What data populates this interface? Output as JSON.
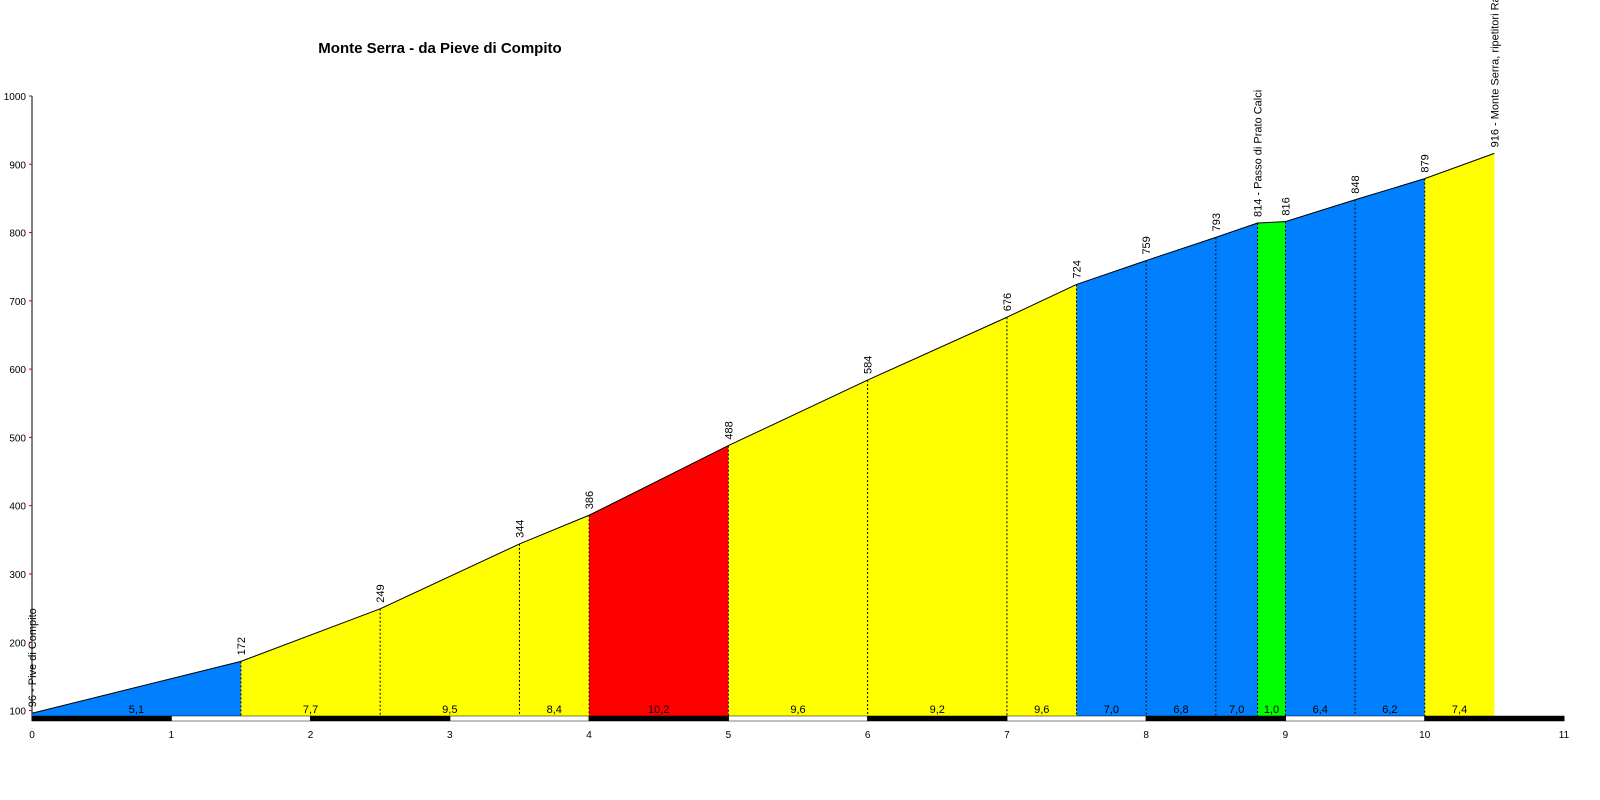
{
  "chart_data": {
    "type": "profile",
    "title": "Monte Serra - da Pieve di Compito",
    "x": [
      0,
      1.5,
      2.5,
      3.5,
      4.0,
      5.0,
      6.0,
      7.0,
      7.5,
      8.0,
      8.5,
      8.8,
      9.0,
      9.5,
      10.0,
      10.5
    ],
    "values": [
      96,
      172,
      249,
      344,
      386,
      488,
      584,
      676,
      724,
      759,
      793,
      814,
      816,
      848,
      879,
      916
    ],
    "value_labels": [
      "96 - Pive di Compito",
      "172",
      "249",
      "344",
      "386",
      "488",
      "584",
      "676",
      "724",
      "759",
      "793",
      "814 - Passo di Prato Calci",
      "816",
      "848",
      "879",
      "916 - Monte Serra, ripetitori Ra"
    ],
    "segments": {
      "values": [
        5.1,
        7.7,
        9.5,
        8.4,
        10.2,
        9.6,
        9.2,
        9.6,
        7.0,
        6.8,
        7.0,
        1.0,
        6.4,
        6.2,
        7.4
      ],
      "value_labels": [
        "5,1",
        "7,7",
        "9,5",
        "8,4",
        "10,2",
        "9,6",
        "9,2",
        "9,6",
        "7,0",
        "6,8",
        "7,0",
        "1,0",
        "6,4",
        "6,2",
        "7,4"
      ],
      "colors": [
        "#0080ff",
        "#ffff00",
        "#ffff00",
        "#ffff00",
        "#ff0000",
        "#ffff00",
        "#ffff00",
        "#ffff00",
        "#0080ff",
        "#0080ff",
        "#0080ff",
        "#00ff00",
        "#0080ff",
        "#0080ff",
        "#ffff00"
      ]
    },
    "xlim": [
      0,
      11
    ],
    "xticks": [
      0,
      1,
      2,
      3,
      4,
      5,
      6,
      7,
      8,
      9,
      10,
      11
    ],
    "ylim": [
      92,
      1000
    ],
    "yticks": [
      100,
      200,
      300,
      400,
      500,
      600,
      700,
      800,
      900,
      1000
    ]
  }
}
